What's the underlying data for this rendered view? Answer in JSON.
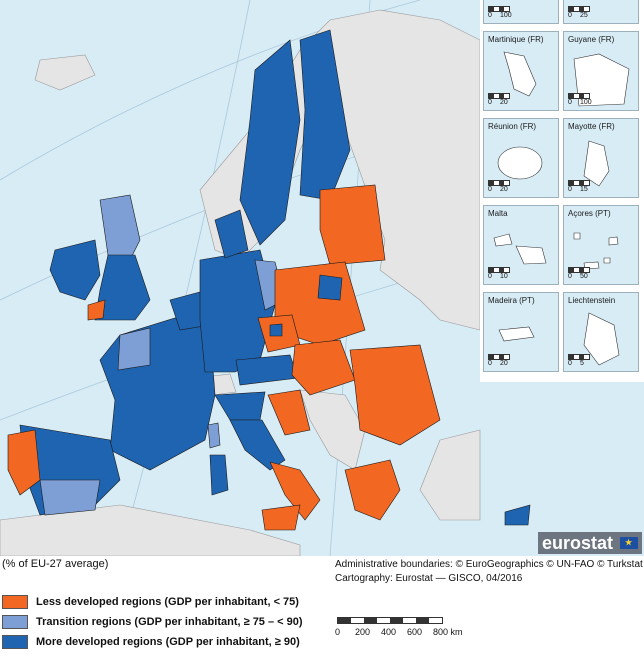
{
  "colors": {
    "sea": "#d8ecf6",
    "non_eu_land": "#e5e5e5",
    "less_developed": "#f26722",
    "transition": "#7d9fd6",
    "more_developed": "#1f64b1",
    "border": "#1a1a1a"
  },
  "insets": [
    {
      "title": "",
      "scale": [
        "0",
        "100"
      ]
    },
    {
      "title": "",
      "scale": [
        "0",
        "25"
      ]
    },
    {
      "title": "Martinique (FR)",
      "scale": [
        "0",
        "20"
      ]
    },
    {
      "title": "Guyane (FR)",
      "scale": [
        "0",
        "100"
      ]
    },
    {
      "title": "Réunion (FR)",
      "scale": [
        "0",
        "20"
      ]
    },
    {
      "title": "Mayotte (FR)",
      "scale": [
        "0",
        "15"
      ]
    },
    {
      "title": "Malta",
      "scale": [
        "0",
        "10"
      ]
    },
    {
      "title": "Açores (PT)",
      "scale": [
        "0",
        "50"
      ]
    },
    {
      "title": "Madeira (PT)",
      "scale": [
        "0",
        "20"
      ]
    },
    {
      "title": "Liechtenstein",
      "scale": [
        "0",
        "5"
      ]
    }
  ],
  "brand": "eurostat",
  "unit_note": "(% of EU-27 average)",
  "credits": {
    "line1": "Administrative boundaries: © EuroGeographics © UN-FAO © Turkstat",
    "line2": "Cartography: Eurostat — GISCO, 04/2016"
  },
  "legend": [
    {
      "label": "Less developed regions (GDP per inhabitant, < 75)",
      "color": "#f26722"
    },
    {
      "label": "Transition regions (GDP per inhabitant, ≥ 75 – < 90)",
      "color": "#7d9fd6"
    },
    {
      "label": "More developed regions (GDP per inhabitant, ≥ 90)",
      "color": "#1f64b1"
    }
  ],
  "main_scale": {
    "ticks": [
      "0",
      "200",
      "400",
      "600",
      "800 km"
    ]
  }
}
